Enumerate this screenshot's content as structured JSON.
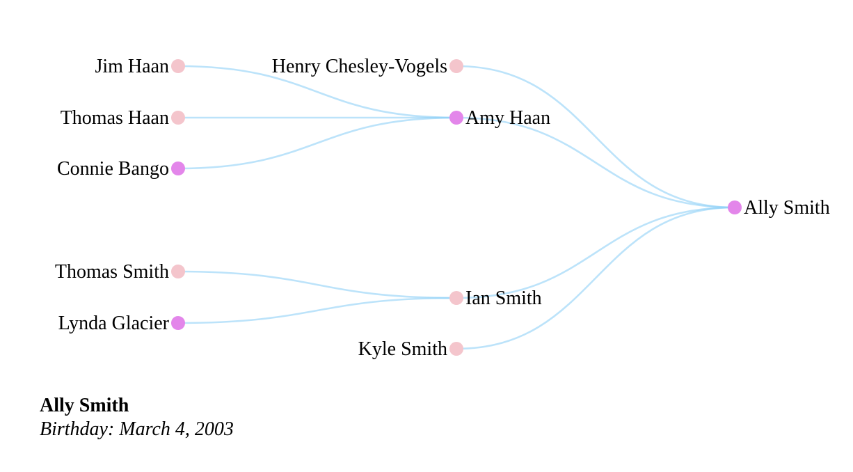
{
  "colors": {
    "link": "#8fd0f7",
    "node_female": "#e386ea",
    "node_other": "#f4c5cc",
    "background": "#ffffff"
  },
  "people": [
    {
      "id": "ally",
      "name": "Ally Smith",
      "gender": "female"
    },
    {
      "id": "amy",
      "name": "Amy Haan",
      "gender": "female"
    },
    {
      "id": "henry",
      "name": "Henry Chesley-Vogels",
      "gender": "other"
    },
    {
      "id": "ian",
      "name": "Ian Smith",
      "gender": "other"
    },
    {
      "id": "kyle",
      "name": "Kyle Smith",
      "gender": "other"
    },
    {
      "id": "jim",
      "name": "Jim Haan",
      "gender": "other"
    },
    {
      "id": "thomash",
      "name": "Thomas Haan",
      "gender": "other"
    },
    {
      "id": "connie",
      "name": "Connie Bango",
      "gender": "female"
    },
    {
      "id": "thomass",
      "name": "Thomas Smith",
      "gender": "other"
    },
    {
      "id": "lynda",
      "name": "Lynda Glacier",
      "gender": "female"
    }
  ],
  "links": [
    {
      "from": "ally",
      "to": "henry"
    },
    {
      "from": "ally",
      "to": "amy"
    },
    {
      "from": "ally",
      "to": "ian"
    },
    {
      "from": "ally",
      "to": "kyle"
    },
    {
      "from": "amy",
      "to": "jim"
    },
    {
      "from": "amy",
      "to": "thomash"
    },
    {
      "from": "amy",
      "to": "connie"
    },
    {
      "from": "ian",
      "to": "thomass"
    },
    {
      "from": "ian",
      "to": "lynda"
    }
  ],
  "selected": {
    "name": "Ally Smith",
    "birthday": "Birthday: March 4, 2003"
  }
}
